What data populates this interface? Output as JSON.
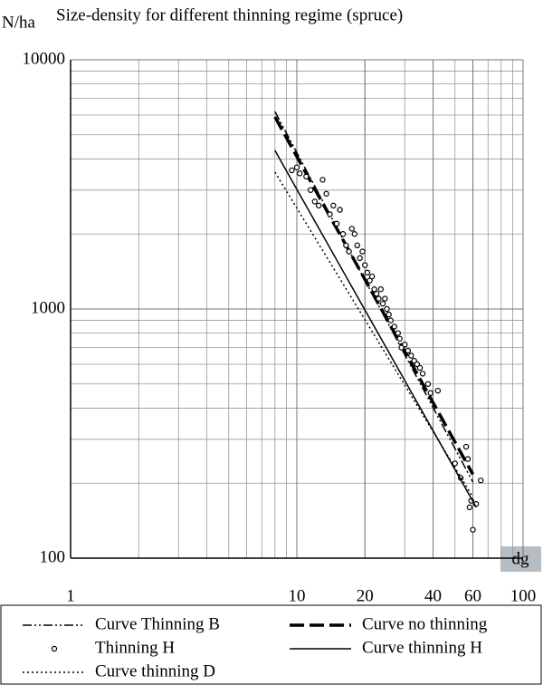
{
  "chart_data": {
    "type": "line",
    "title": "Size-density for different thinning regime (spruce)",
    "y_label": "N/ha",
    "x_label": "dg",
    "x_log": true,
    "y_log": true,
    "grid": true,
    "xlim": [
      1,
      100
    ],
    "ylim": [
      100,
      10000
    ],
    "xticks": [
      1,
      10,
      20,
      40,
      60,
      100
    ],
    "yticks": [
      100,
      1000,
      10000
    ],
    "series": [
      {
        "name": "Curve Thinning B",
        "color": "#000000",
        "style": "dashdot",
        "x": [
          8,
          10,
          20,
          40,
          60
        ],
        "values": [
          6200,
          4240,
          1305,
          402,
          202
        ]
      },
      {
        "name": "Curve no thinning",
        "color": "#000000",
        "style": "thickdash",
        "x": [
          8,
          10,
          20,
          40,
          60
        ],
        "values": [
          5900,
          4090,
          1313,
          421,
          217
        ]
      },
      {
        "name": "Thinning H",
        "color": "#000000",
        "style": "markers",
        "x": [
          9.5,
          10,
          10.3,
          11,
          11.5,
          12,
          12.5,
          13,
          13.5,
          14,
          14.5,
          15,
          15.5,
          16,
          16.5,
          17,
          17.5,
          18,
          18.5,
          19,
          19.5,
          20,
          20.5,
          21,
          21.5,
          22,
          22.5,
          23,
          23.5,
          24,
          24.5,
          25,
          25.5,
          26,
          27,
          28,
          28.5,
          29,
          30,
          31,
          32,
          33,
          34,
          35,
          36,
          38,
          39,
          42,
          50,
          53,
          56,
          57,
          58,
          59,
          60,
          62,
          65
        ],
        "values": [
          3600,
          3700,
          3500,
          3400,
          3000,
          2700,
          2600,
          3300,
          2900,
          2400,
          2600,
          2200,
          2500,
          2000,
          1800,
          1700,
          2100,
          2000,
          1800,
          1600,
          1700,
          1500,
          1400,
          1300,
          1350,
          1200,
          1150,
          1100,
          1200,
          1050,
          1100,
          1000,
          950,
          900,
          850,
          800,
          760,
          700,
          720,
          680,
          650,
          620,
          600,
          580,
          550,
          500,
          460,
          470,
          240,
          210,
          280,
          250,
          160,
          170,
          130,
          165,
          205
        ]
      },
      {
        "name": "Curve thinning H",
        "color": "#000000",
        "style": "solid",
        "x": [
          8,
          10,
          20,
          40,
          60,
          62
        ],
        "values": [
          4330,
          3020,
          990,
          325,
          169,
          160
        ]
      },
      {
        "name": "Curve thinning D",
        "color": "#000000",
        "style": "dotted",
        "x": [
          8,
          10,
          20,
          40,
          60
        ],
        "values": [
          3540,
          2540,
          905,
          322,
          176
        ]
      }
    ]
  }
}
